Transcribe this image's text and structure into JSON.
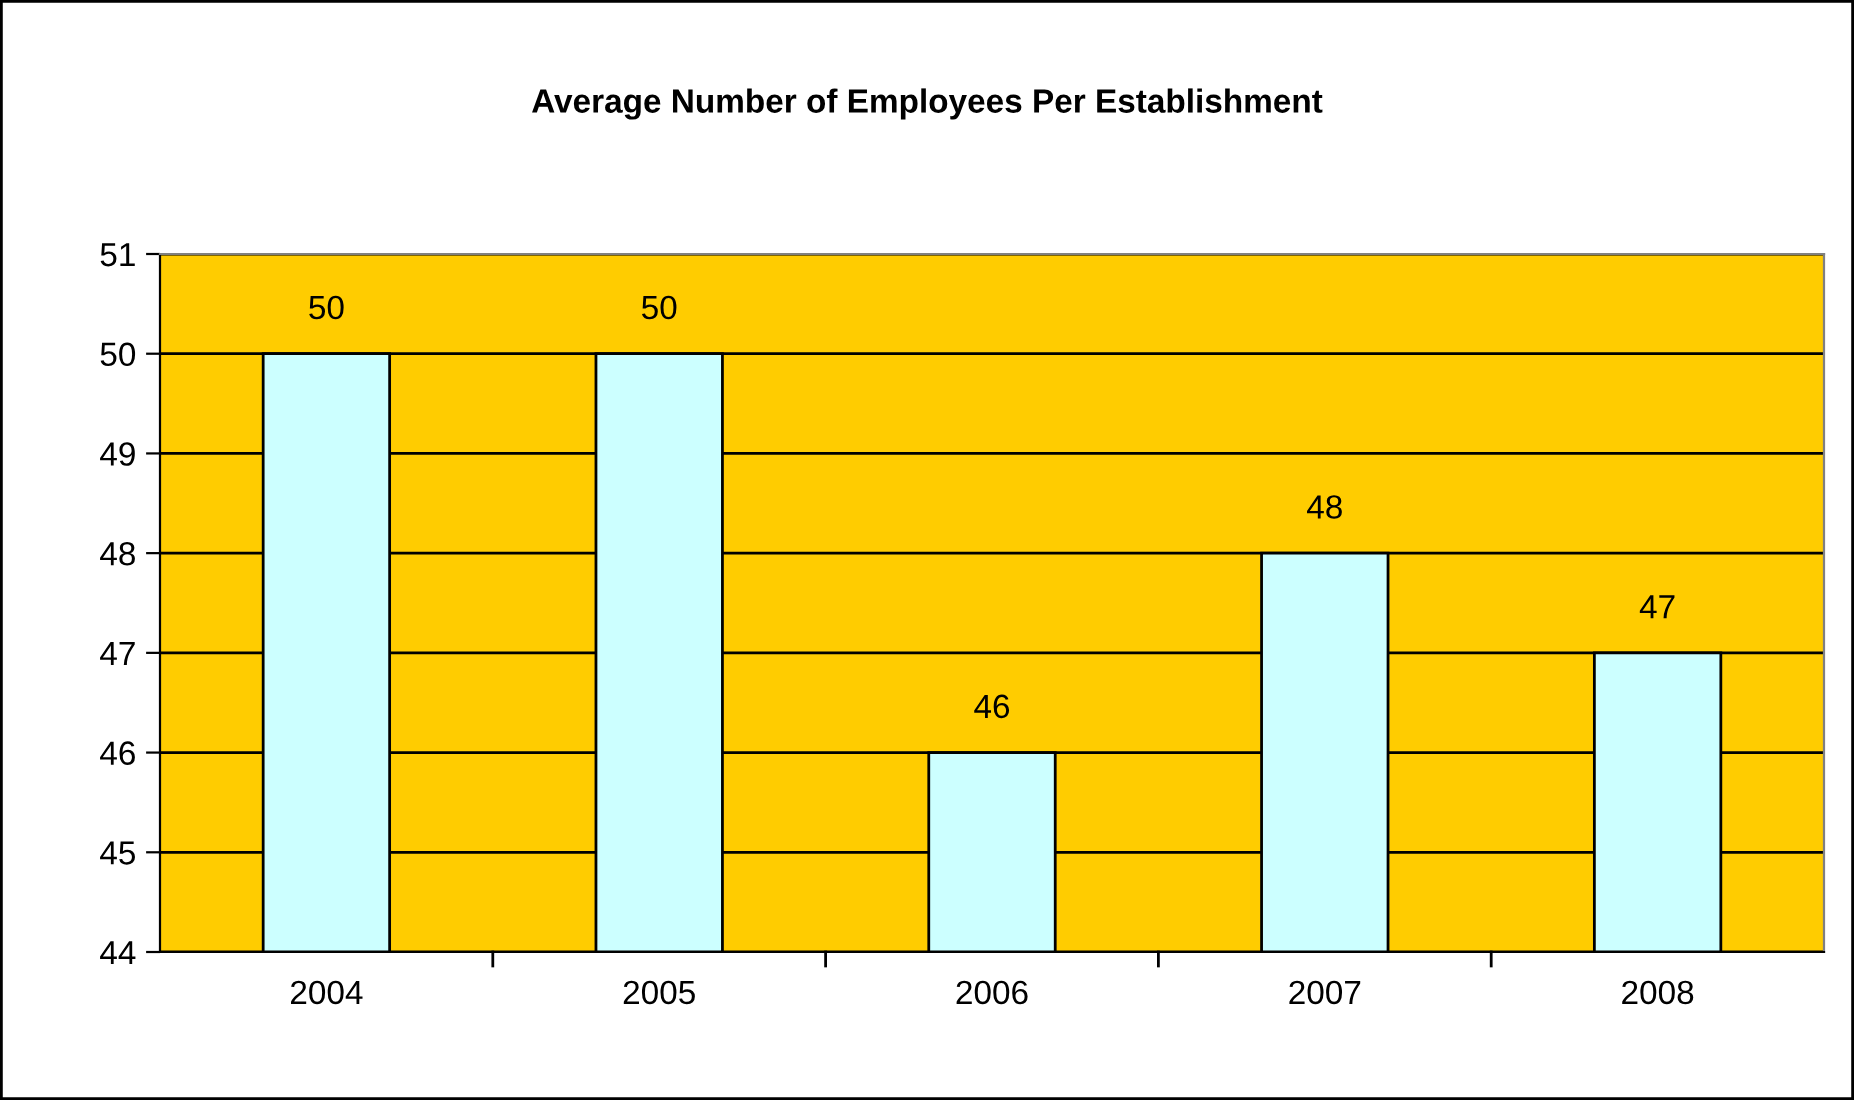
{
  "chart_data": {
    "type": "bar",
    "title": "Average Number of Employees Per Establishment",
    "categories": [
      "2004",
      "2005",
      "2006",
      "2007",
      "2008"
    ],
    "values": [
      50,
      50,
      46,
      48,
      47
    ],
    "color": "#ccffff",
    "ylim": [
      44,
      51
    ],
    "yticks": [
      44,
      45,
      46,
      47,
      48,
      49,
      50,
      51
    ],
    "grid": "y",
    "data_labels": true,
    "legend": false
  }
}
